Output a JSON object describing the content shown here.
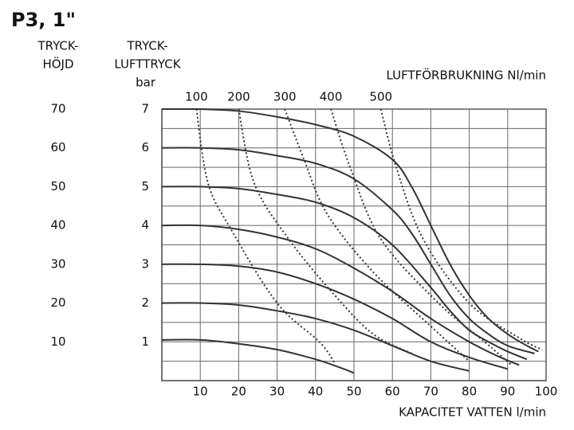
{
  "chart_data": {
    "type": "line",
    "title": "P3, 1\"",
    "ylabel": [
      "TRYCK-",
      "LUFTTRYCK",
      "bar"
    ],
    "y2label": [
      "TRYCK-",
      "HÖJD"
    ],
    "xlabel": "KAPACITET VATTEN l/min",
    "toplabel": "LUFTFÖRBRUKNING Nl/min",
    "xlim": [
      0,
      100
    ],
    "xticks": [
      10,
      20,
      30,
      40,
      50,
      60,
      70,
      80,
      90,
      100
    ],
    "ylim": [
      0,
      7
    ],
    "yticks": [
      1,
      2,
      3,
      4,
      5,
      6,
      7
    ],
    "minor_yticks": [
      0.5,
      1.5,
      2.5,
      3.5,
      4.5,
      5.5,
      6.5
    ],
    "y2lim": [
      0,
      70
    ],
    "y2ticks": [
      10,
      20,
      30,
      40,
      50,
      60,
      70
    ],
    "grid": true,
    "color": "#333333",
    "series": [
      {
        "style": "solid",
        "x": [
          0,
          10,
          20,
          30,
          40,
          50,
          60,
          65,
          70,
          75,
          80,
          85,
          90,
          95,
          98
        ],
        "values": [
          7,
          7,
          6.95,
          6.8,
          6.6,
          6.3,
          5.7,
          5,
          4,
          3,
          2.2,
          1.6,
          1.2,
          0.9,
          0.75
        ]
      },
      {
        "style": "solid",
        "x": [
          0,
          10,
          20,
          30,
          40,
          50,
          60,
          65,
          70,
          75,
          80,
          85,
          90,
          97
        ],
        "values": [
          6,
          6,
          5.95,
          5.8,
          5.6,
          5.2,
          4.4,
          3.8,
          3,
          2.2,
          1.6,
          1.2,
          0.9,
          0.7
        ]
      },
      {
        "style": "solid",
        "x": [
          0,
          10,
          20,
          30,
          40,
          50,
          60,
          70,
          75,
          80,
          85,
          90,
          95
        ],
        "values": [
          5,
          5,
          4.95,
          4.8,
          4.6,
          4.2,
          3.5,
          2.4,
          1.8,
          1.3,
          1,
          0.75,
          0.55
        ]
      },
      {
        "style": "solid",
        "x": [
          0,
          10,
          20,
          30,
          40,
          50,
          60,
          70,
          80,
          87,
          93
        ],
        "values": [
          4,
          4,
          3.9,
          3.7,
          3.4,
          2.9,
          2.3,
          1.6,
          1,
          0.65,
          0.4
        ]
      },
      {
        "style": "solid",
        "x": [
          0,
          10,
          20,
          30,
          40,
          50,
          60,
          70,
          80,
          90
        ],
        "values": [
          3,
          3,
          2.95,
          2.8,
          2.5,
          2.1,
          1.6,
          1,
          0.6,
          0.3
        ]
      },
      {
        "style": "solid",
        "x": [
          0,
          10,
          20,
          30,
          40,
          50,
          60,
          70,
          80
        ],
        "values": [
          2,
          2,
          1.95,
          1.8,
          1.6,
          1.3,
          0.9,
          0.5,
          0.25
        ]
      },
      {
        "style": "solid",
        "x": [
          0,
          10,
          20,
          30,
          40,
          46,
          50
        ],
        "values": [
          1.05,
          1.05,
          0.95,
          0.8,
          0.55,
          0.35,
          0.2
        ]
      },
      {
        "name": "100",
        "style": "dotted",
        "x": [
          9,
          12,
          18,
          30,
          41,
          45
        ],
        "values": [
          7,
          5.1,
          3.9,
          2,
          1,
          0.45
        ]
      },
      {
        "name": "200",
        "style": "dotted",
        "x": [
          20,
          24,
          33,
          45,
          55,
          65
        ],
        "values": [
          7,
          5.1,
          3.65,
          2.2,
          1.2,
          0.7
        ]
      },
      {
        "name": "300",
        "style": "dotted",
        "x": [
          32,
          37,
          43,
          55,
          70,
          80
        ],
        "values": [
          7,
          5.7,
          4.3,
          2.8,
          1.4,
          0.5
        ]
      },
      {
        "name": "400",
        "style": "dotted",
        "x": [
          44,
          49,
          57,
          72,
          84,
          91
        ],
        "values": [
          7,
          5.5,
          3.65,
          2,
          1,
          0.4
        ]
      },
      {
        "name": "500",
        "style": "dotted",
        "x": [
          57,
          61,
          68,
          80,
          93,
          99
        ],
        "values": [
          7,
          5.5,
          3.65,
          2,
          1.1,
          0.8
        ]
      }
    ]
  }
}
